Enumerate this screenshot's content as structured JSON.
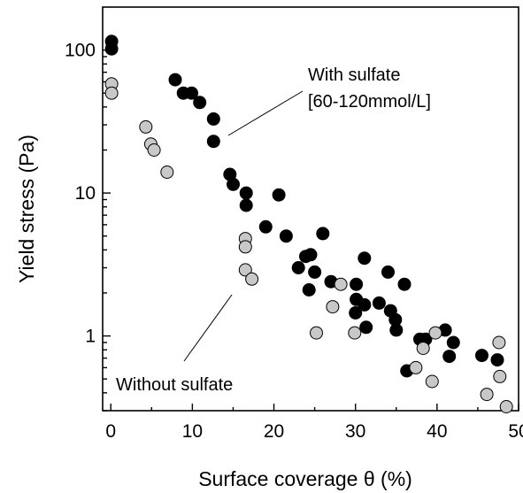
{
  "chart_data": {
    "type": "scatter",
    "xlabel": "Surface coverage θ (%)",
    "ylabel": "Yield stress (Pa)",
    "xlim": [
      -1,
      50
    ],
    "ylim": [
      0.3,
      200
    ],
    "yscale": "log",
    "xticks": [
      0,
      10,
      20,
      30,
      40,
      50
    ],
    "yticks": [
      1,
      10,
      100
    ],
    "ytick_labels": [
      "1",
      "10",
      "100"
    ],
    "grid": false,
    "series": [
      {
        "name": "With sulfate [60-120mmol/L]",
        "color": "#000000",
        "points": [
          [
            0.1,
            115
          ],
          [
            0.1,
            102
          ],
          [
            7.9,
            62
          ],
          [
            8.9,
            50
          ],
          [
            9.9,
            50
          ],
          [
            10.9,
            43
          ],
          [
            12.6,
            33
          ],
          [
            12.6,
            23
          ],
          [
            14.6,
            13.5
          ],
          [
            15.0,
            11.5
          ],
          [
            16.6,
            10.0
          ],
          [
            16.6,
            8.2
          ],
          [
            20.6,
            9.7
          ],
          [
            19.0,
            5.8
          ],
          [
            21.5,
            5.0
          ],
          [
            26.0,
            5.2
          ],
          [
            23.9,
            3.6
          ],
          [
            24.5,
            3.7
          ],
          [
            23.0,
            3.0
          ],
          [
            25.0,
            2.8
          ],
          [
            24.3,
            2.1
          ],
          [
            27.0,
            2.4
          ],
          [
            31.1,
            3.5
          ],
          [
            30.1,
            2.3
          ],
          [
            30.1,
            1.8
          ],
          [
            30.0,
            1.45
          ],
          [
            31.1,
            1.65
          ],
          [
            32.9,
            1.7
          ],
          [
            34.0,
            2.8
          ],
          [
            36.0,
            2.3
          ],
          [
            34.3,
            1.5
          ],
          [
            34.9,
            1.3
          ],
          [
            35.0,
            1.1
          ],
          [
            31.3,
            1.15
          ],
          [
            36.3,
            0.57
          ],
          [
            37.9,
            0.95
          ],
          [
            38.6,
            0.95
          ],
          [
            41.0,
            1.1
          ],
          [
            42.0,
            0.9
          ],
          [
            41.5,
            0.72
          ],
          [
            45.5,
            0.73
          ],
          [
            47.4,
            0.68
          ]
        ]
      },
      {
        "name": "Without sulfate",
        "color": "#c8c8c8",
        "points": [
          [
            0.1,
            58
          ],
          [
            0.1,
            50
          ],
          [
            4.3,
            29
          ],
          [
            4.9,
            22
          ],
          [
            5.3,
            20
          ],
          [
            6.9,
            14
          ],
          [
            16.5,
            4.8
          ],
          [
            16.5,
            4.2
          ],
          [
            16.5,
            2.9
          ],
          [
            17.3,
            2.5
          ],
          [
            25.2,
            1.05
          ],
          [
            27.2,
            1.6
          ],
          [
            28.2,
            2.3
          ],
          [
            29.9,
            1.05
          ],
          [
            37.4,
            0.6
          ],
          [
            38.3,
            0.82
          ],
          [
            39.4,
            0.48
          ],
          [
            39.8,
            1.05
          ],
          [
            46.1,
            0.39
          ],
          [
            47.6,
            0.9
          ],
          [
            47.7,
            0.52
          ],
          [
            48.5,
            0.32
          ]
        ]
      }
    ],
    "annotations": [
      "With sulfate",
      "[60-120mmol/L]",
      "Without sulfate"
    ]
  }
}
